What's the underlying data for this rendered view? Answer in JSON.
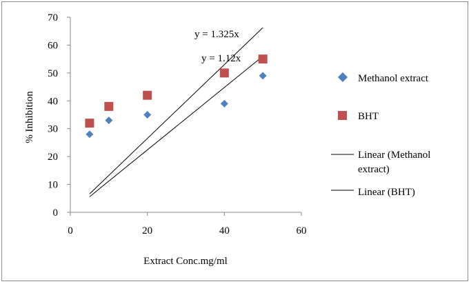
{
  "chart_data": {
    "type": "scatter",
    "xlabel": "Extract Conc.mg/ml",
    "ylabel": "% Inhibition",
    "xlim": [
      0,
      60
    ],
    "ylim": [
      0,
      70
    ],
    "x_ticks": [
      0,
      20,
      40,
      60
    ],
    "y_ticks": [
      0,
      10,
      20,
      30,
      40,
      50,
      60,
      70
    ],
    "grid": false,
    "legend_position": "right",
    "series": [
      {
        "name": "Methanol extract",
        "marker": "diamond",
        "color": "#4f81bd",
        "points": [
          [
            5,
            28
          ],
          [
            10,
            33
          ],
          [
            20,
            35
          ],
          [
            40,
            39
          ],
          [
            50,
            49
          ]
        ],
        "trendline": {
          "name": "Linear (Methanol extract)",
          "slope": 1.12,
          "equation": "y = 1.12x",
          "color": "#000000"
        }
      },
      {
        "name": "BHT",
        "marker": "square",
        "color": "#c0504d",
        "points": [
          [
            5,
            32
          ],
          [
            10,
            38
          ],
          [
            20,
            42
          ],
          [
            40,
            50
          ],
          [
            50,
            55
          ]
        ],
        "trendline": {
          "name": "Linear (BHT)",
          "slope": 1.325,
          "equation": "y = 1.325x",
          "color": "#000000"
        }
      }
    ]
  }
}
